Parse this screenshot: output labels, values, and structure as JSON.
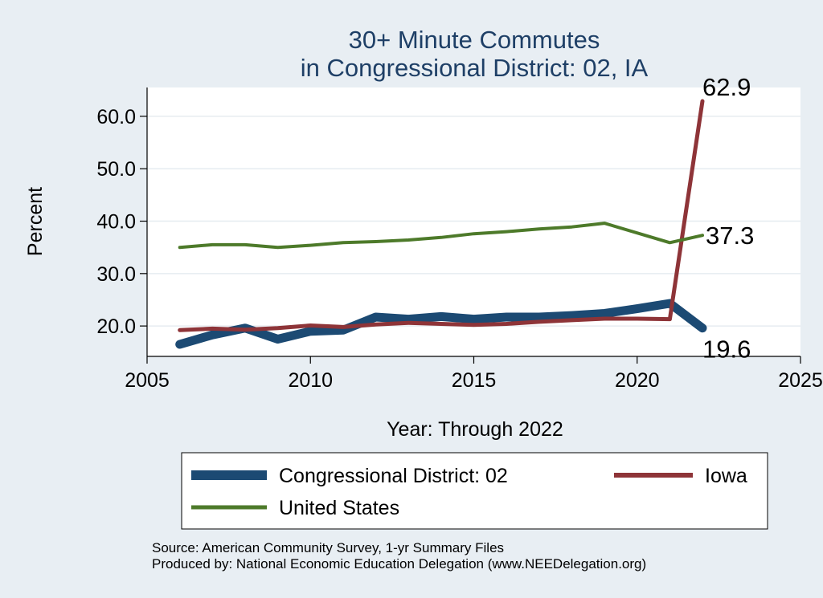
{
  "chart_data": {
    "type": "line",
    "title_line1": "30+ Minute Commutes",
    "title_line2": "in Congressional District:  02, IA",
    "xlabel": "Year: Through 2022",
    "ylabel": "Percent",
    "xlim": [
      2005,
      2025
    ],
    "ylim": [
      14.2,
      65.5
    ],
    "xticks": [
      "2005",
      "2010",
      "2015",
      "2020",
      "2025"
    ],
    "yticks": [
      "20.0",
      "30.0",
      "40.0",
      "50.0",
      "60.0"
    ],
    "x": [
      2006,
      2007,
      2008,
      2009,
      2010,
      2011,
      2012,
      2013,
      2014,
      2015,
      2016,
      2017,
      2018,
      2019,
      2020,
      2021,
      2022
    ],
    "series": [
      {
        "name": "Congressional District:  02",
        "color": "#1c4a73",
        "values": [
          16.5,
          18.3,
          19.6,
          17.5,
          19.0,
          19.2,
          21.7,
          21.3,
          21.8,
          21.3,
          21.7,
          21.7,
          22.0,
          22.4,
          23.3,
          24.3,
          19.6
        ],
        "end_label": "19.6"
      },
      {
        "name": "Iowa",
        "color": "#8e3438",
        "values": [
          19.2,
          19.5,
          19.3,
          19.6,
          20.1,
          19.8,
          20.3,
          20.6,
          20.4,
          20.2,
          20.4,
          20.8,
          21.1,
          21.4,
          21.4,
          21.3,
          62.9
        ],
        "end_label": "62.9"
      },
      {
        "name": "United States",
        "color": "#4d7a2a",
        "values": [
          35.0,
          35.5,
          35.5,
          35.0,
          35.4,
          35.9,
          36.1,
          36.4,
          36.9,
          37.6,
          38.0,
          38.5,
          38.9,
          39.6,
          null,
          35.9,
          37.3
        ],
        "end_label": "37.3"
      }
    ],
    "legend_position": "bottom",
    "grid": "horizontal"
  },
  "source_line1": "Source: American Community Survey, 1-yr Summary Files",
  "source_line2": "Produced by: National Economic Education Delegation (www.NEEDelegation.org)"
}
